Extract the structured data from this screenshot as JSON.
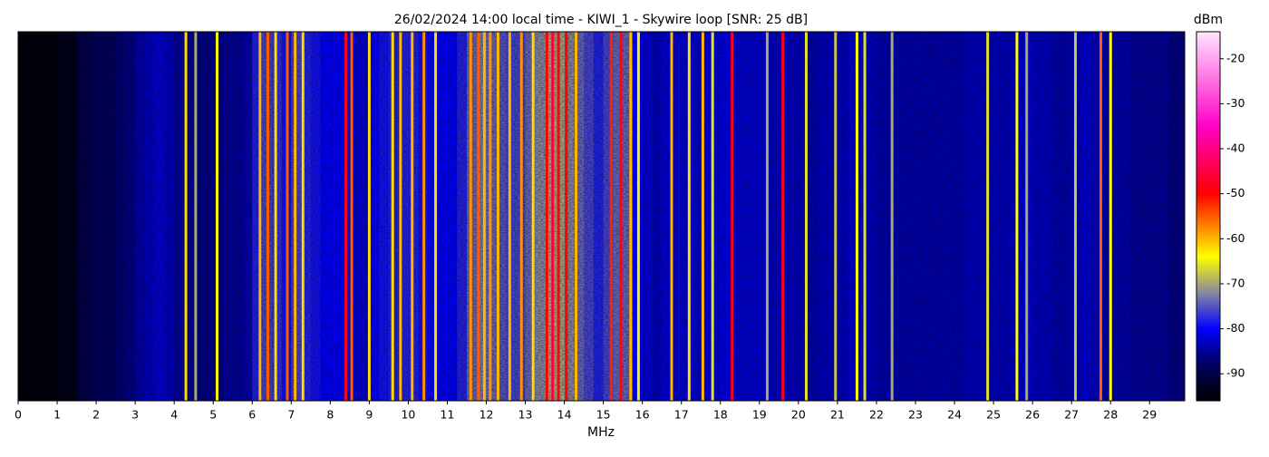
{
  "chart_data": {
    "type": "spectrogram",
    "title": "26/02/2024 14:00 local time - KIWI_1 - Skywire loop [SNR: 25 dB]",
    "xlabel": "MHz",
    "colorbar_label": "dBm",
    "xlim": [
      0,
      29.9
    ],
    "xticks": [
      0,
      1,
      2,
      3,
      4,
      5,
      6,
      7,
      8,
      9,
      10,
      11,
      12,
      13,
      14,
      15,
      16,
      17,
      18,
      19,
      20,
      21,
      22,
      23,
      24,
      25,
      26,
      27,
      28,
      29
    ],
    "zlim": [
      -96,
      -14
    ],
    "zticks": [
      -20,
      -30,
      -40,
      -50,
      -60,
      -70,
      -80,
      -90
    ],
    "colorscale": [
      [
        -96,
        "#000000"
      ],
      [
        -88,
        "#000060"
      ],
      [
        -80,
        "#0000ff"
      ],
      [
        -72,
        "#8888a0"
      ],
      [
        -64,
        "#ffff00"
      ],
      [
        -50,
        "#ff0000"
      ],
      [
        -35,
        "#ff00c8"
      ],
      [
        -14,
        "#ffe6ff"
      ]
    ],
    "x": [
      0,
      0.25,
      0.5,
      0.75,
      1,
      1.25,
      1.5,
      1.75,
      2,
      2.25,
      2.5,
      2.75,
      3,
      3.25,
      3.5,
      3.75,
      4,
      4.25,
      4.5,
      4.75,
      5,
      5.25,
      5.5,
      5.75,
      6,
      6.25,
      6.5,
      6.75,
      7,
      7.25,
      7.5,
      7.75,
      8,
      8.25,
      8.5,
      8.75,
      9,
      9.25,
      9.5,
      9.75,
      10,
      10.25,
      10.5,
      10.75,
      11,
      11.25,
      11.5,
      11.75,
      12,
      12.25,
      12.5,
      12.75,
      13,
      13.25,
      13.5,
      13.75,
      14,
      14.25,
      14.5,
      14.75,
      15,
      15.25,
      15.5,
      15.75,
      16,
      16.25,
      16.5,
      16.75,
      17,
      17.25,
      17.5,
      17.75,
      18,
      18.25,
      18.5,
      18.75,
      19,
      19.25,
      19.5,
      19.75,
      20,
      20.25,
      20.5,
      20.75,
      21,
      21.25,
      21.5,
      21.75,
      22,
      22.25,
      22.5,
      22.75,
      23,
      23.25,
      23.5,
      23.75,
      24,
      24.25,
      24.5,
      24.75,
      25,
      25.25,
      25.5,
      25.75,
      26,
      26.25,
      26.5,
      26.75,
      27,
      27.25,
      27.5,
      27.75,
      28,
      28.25,
      28.5,
      28.75,
      29,
      29.25,
      29.5,
      29.75
    ],
    "values": [
      -95,
      -95,
      -95,
      -95,
      -94,
      -94,
      -90,
      -89,
      -88,
      -88,
      -87,
      -86,
      -84,
      -83,
      -82,
      -83,
      -85,
      -85,
      -86,
      -86,
      -86,
      -85,
      -85,
      -84,
      -78,
      -76,
      -77,
      -79,
      -76,
      -78,
      -79,
      -80,
      -80,
      -80,
      -82,
      -82,
      -80,
      -79,
      -78,
      -78,
      -78,
      -79,
      -80,
      -80,
      -80,
      -78,
      -74,
      -73,
      -74,
      -75,
      -76,
      -76,
      -74,
      -72,
      -70,
      -70,
      -72,
      -74,
      -76,
      -78,
      -76,
      -74,
      -74,
      -80,
      -82,
      -83,
      -82,
      -82,
      -82,
      -82,
      -81,
      -82,
      -81,
      -82,
      -82,
      -82,
      -82,
      -83,
      -82,
      -83,
      -83,
      -84,
      -83,
      -83,
      -83,
      -82,
      -82,
      -83,
      -84,
      -84,
      -84,
      -84,
      -84,
      -84,
      -84,
      -84,
      -84,
      -83,
      -83,
      -83,
      -83,
      -83,
      -82,
      -82,
      -83,
      -83,
      -84,
      -84,
      -83,
      -82,
      -83,
      -84,
      -84,
      -84,
      -85,
      -85,
      -85,
      -85,
      -86,
      -86
    ],
    "signals": {
      "x": [
        4.3,
        4.55,
        5.1,
        6.2,
        6.4,
        6.6,
        6.9,
        7.1,
        7.3,
        8.4,
        8.55,
        9.0,
        9.6,
        9.8,
        10.1,
        10.4,
        10.7,
        11.6,
        11.8,
        11.95,
        12.1,
        12.3,
        12.6,
        12.9,
        13.2,
        13.55,
        13.7,
        13.85,
        14.05,
        14.3,
        15.2,
        15.45,
        15.7,
        15.9,
        16.75,
        17.2,
        17.55,
        17.8,
        18.3,
        19.2,
        19.6,
        20.2,
        20.95,
        21.5,
        21.7,
        22.4,
        24.85,
        25.6,
        25.85,
        27.1,
        27.75,
        28.0
      ],
      "values": [
        -62,
        -70,
        -64,
        -60,
        -55,
        -62,
        -55,
        -60,
        -62,
        -48,
        -55,
        -62,
        -62,
        -60,
        -60,
        -58,
        -62,
        -58,
        -55,
        -60,
        -58,
        -60,
        -60,
        -58,
        -62,
        -50,
        -45,
        -48,
        -50,
        -60,
        -52,
        -48,
        -60,
        -65,
        -60,
        -62,
        -60,
        -66,
        -48,
        -70,
        -48,
        -66,
        -68,
        -64,
        -66,
        -70,
        -66,
        -64,
        -70,
        -68,
        -55,
        -64
      ]
    }
  }
}
